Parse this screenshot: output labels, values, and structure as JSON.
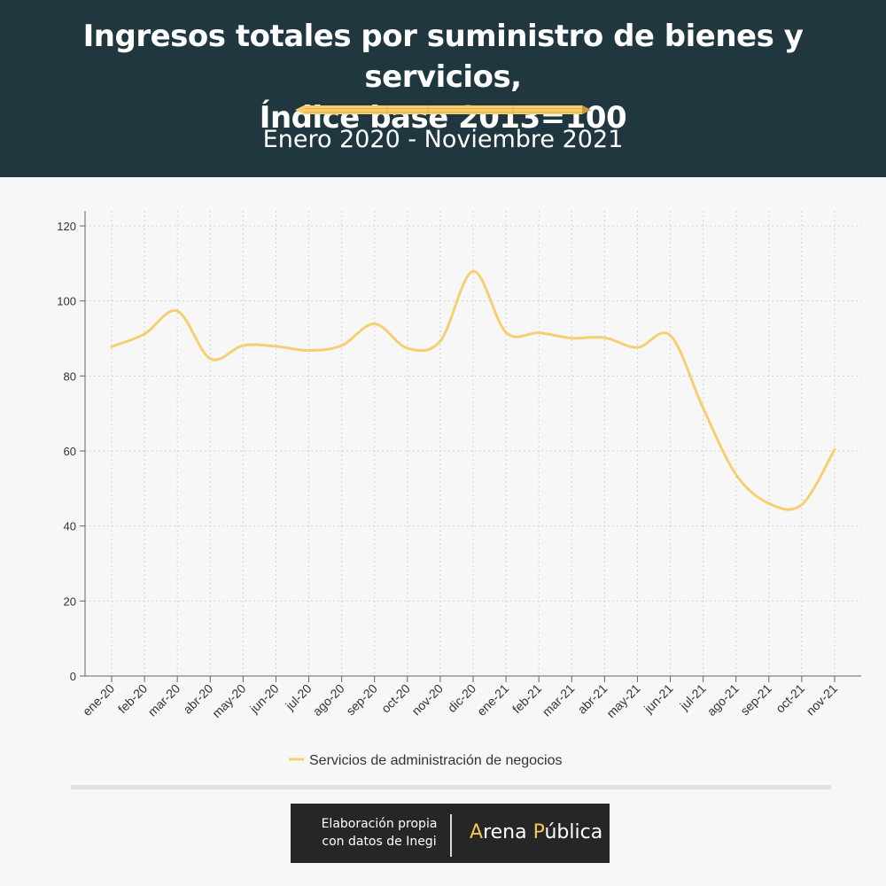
{
  "header": {
    "title_line1": "Ingresos totales por suministro de bienes y servicios,",
    "title_line2": "Índice base 2013=100",
    "subtitle": "Enero 2020 - Noviembre 2021"
  },
  "chart_data": {
    "type": "line",
    "categories": [
      "ene-20",
      "feb-20",
      "mar-20",
      "abr-20",
      "may-20",
      "jun-20",
      "jul-20",
      "ago-20",
      "sep-20",
      "oct-20",
      "nov-20",
      "dic-20",
      "ene-21",
      "feb-21",
      "mar-21",
      "abr-21",
      "may-21",
      "jun-21",
      "jul-21",
      "ago-21",
      "sep-21",
      "oct-21",
      "nov-21"
    ],
    "series": [
      {
        "name": "Servicios de administración de negocios",
        "values": [
          87.8,
          91.2,
          97.3,
          84.6,
          88.1,
          87.9,
          86.8,
          88.1,
          93.9,
          87.4,
          89.3,
          107.9,
          91.6,
          91.5,
          90.1,
          90.2,
          87.6,
          90.8,
          71.4,
          53.7,
          46.0,
          45.7,
          60.4
        ],
        "color": "#f7cf73"
      }
    ],
    "ylim": [
      0,
      120
    ],
    "yticks": [
      0,
      20,
      40,
      60,
      80,
      100,
      120
    ],
    "grid": true,
    "legend": "bottom-center"
  },
  "footer": {
    "credit_line1": "Elaboración propia",
    "credit_line2": "con datos de Inegi",
    "brand_a": "A",
    "brand_rena": "rena ",
    "brand_p": "P",
    "brand_ublica": "ública"
  }
}
